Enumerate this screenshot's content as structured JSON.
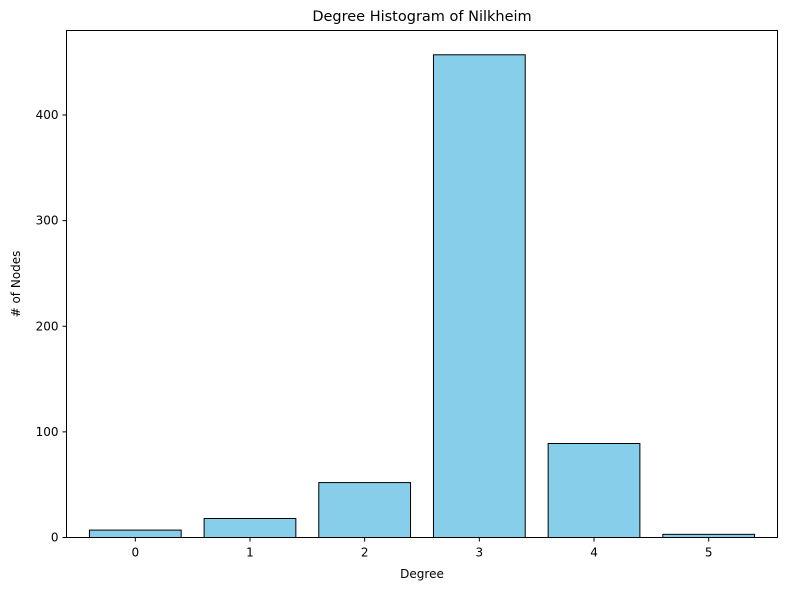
{
  "chart_data": {
    "type": "bar",
    "title": "Degree Histogram of Nilkheim",
    "xlabel": "Degree",
    "ylabel": "# of Nodes",
    "categories": [
      "0",
      "1",
      "2",
      "3",
      "4",
      "5"
    ],
    "values": [
      7,
      18,
      52,
      457,
      89,
      3
    ],
    "ylim": [
      0,
      480
    ],
    "yticks": [
      0,
      100,
      200,
      300,
      400
    ],
    "grid": false,
    "colors": {
      "bar_fill": "#87CEEB",
      "bar_edge": "#000000"
    }
  }
}
